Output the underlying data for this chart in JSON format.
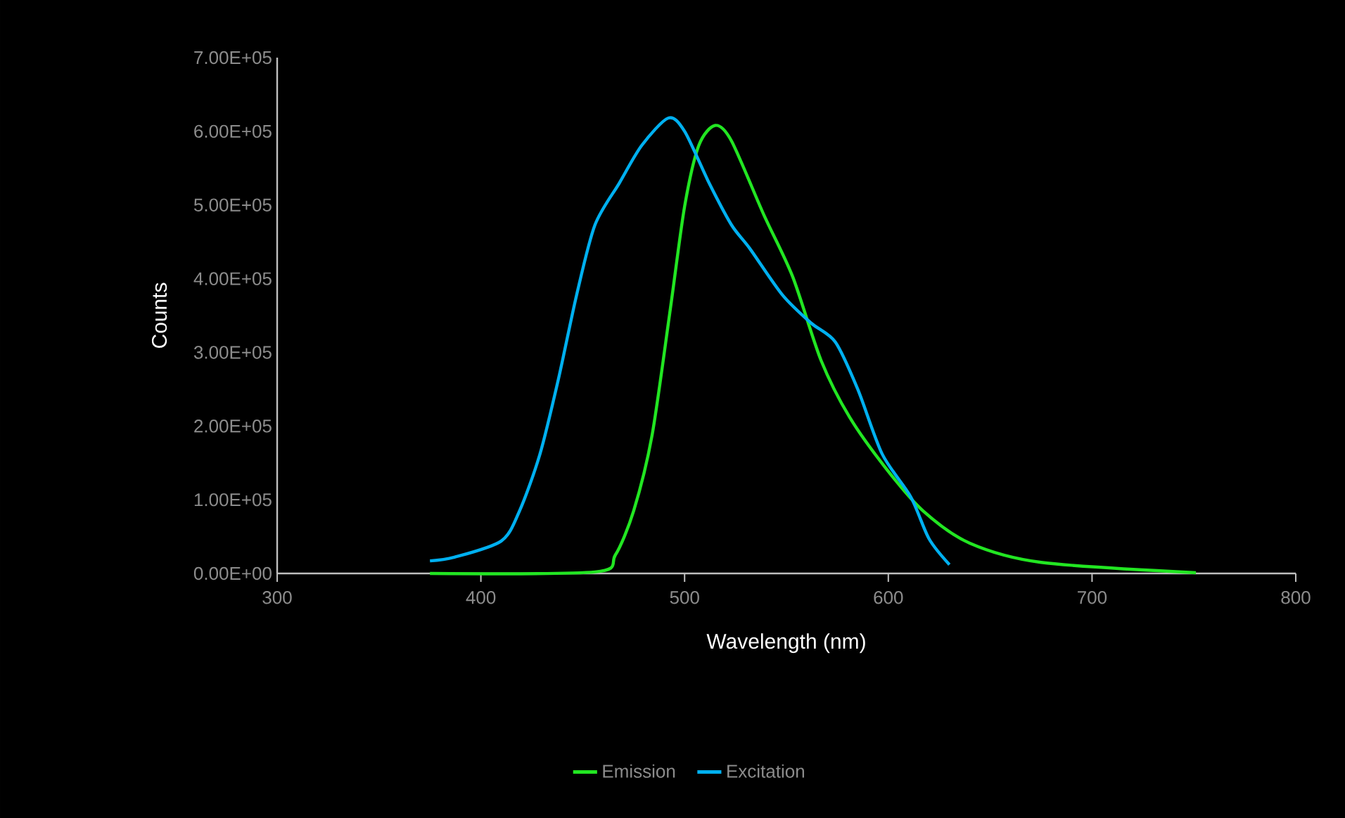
{
  "chart_data": {
    "type": "line",
    "xlabel": "Wavelength (nm)",
    "ylabel": "Counts",
    "xlim": [
      300,
      800
    ],
    "xticks": [
      300,
      400,
      500,
      600,
      700,
      800
    ],
    "ylim": [
      0,
      700000
    ],
    "yticks": [
      {
        "value": 0,
        "label": "0.00E+00"
      },
      {
        "value": 100000,
        "label": "1.00E+05"
      },
      {
        "value": 200000,
        "label": "2.00E+05"
      },
      {
        "value": 300000,
        "label": "3.00E+05"
      },
      {
        "value": 400000,
        "label": "4.00E+05"
      },
      {
        "value": 500000,
        "label": "5.00E+05"
      },
      {
        "value": 600000,
        "label": "6.00E+05"
      },
      {
        "value": 700000,
        "label": "7.00E+05"
      }
    ],
    "grid": false,
    "legend": "bottom",
    "marker": "none",
    "line_style": "solid",
    "series": [
      {
        "name": "Emission",
        "color": "#22e622",
        "x": [
          375,
          456,
          466,
          475,
          484,
          493,
          500,
          507,
          515,
          523,
          539,
          553,
          567,
          581,
          599,
          617,
          640,
          675,
          751
        ],
        "values": [
          0,
          2000,
          25000,
          85000,
          187000,
          359000,
          498000,
          581000,
          608000,
          587000,
          486000,
          403000,
          289000,
          212000,
          142000,
          85000,
          41000,
          15000,
          1000
        ]
      },
      {
        "name": "Excitation",
        "color": "#00b0f0",
        "x": [
          375,
          387,
          410,
          419,
          429,
          438,
          447,
          456,
          468,
          479,
          492,
          500,
          512,
          523,
          532,
          548,
          562,
          574,
          585,
          597,
          611,
          620,
          630
        ],
        "values": [
          17000,
          22000,
          44000,
          85000,
          162000,
          263000,
          378000,
          473000,
          530000,
          581000,
          618000,
          600000,
          530000,
          473000,
          441000,
          378000,
          340000,
          314000,
          250000,
          162000,
          104000,
          47000,
          12000
        ]
      }
    ]
  }
}
